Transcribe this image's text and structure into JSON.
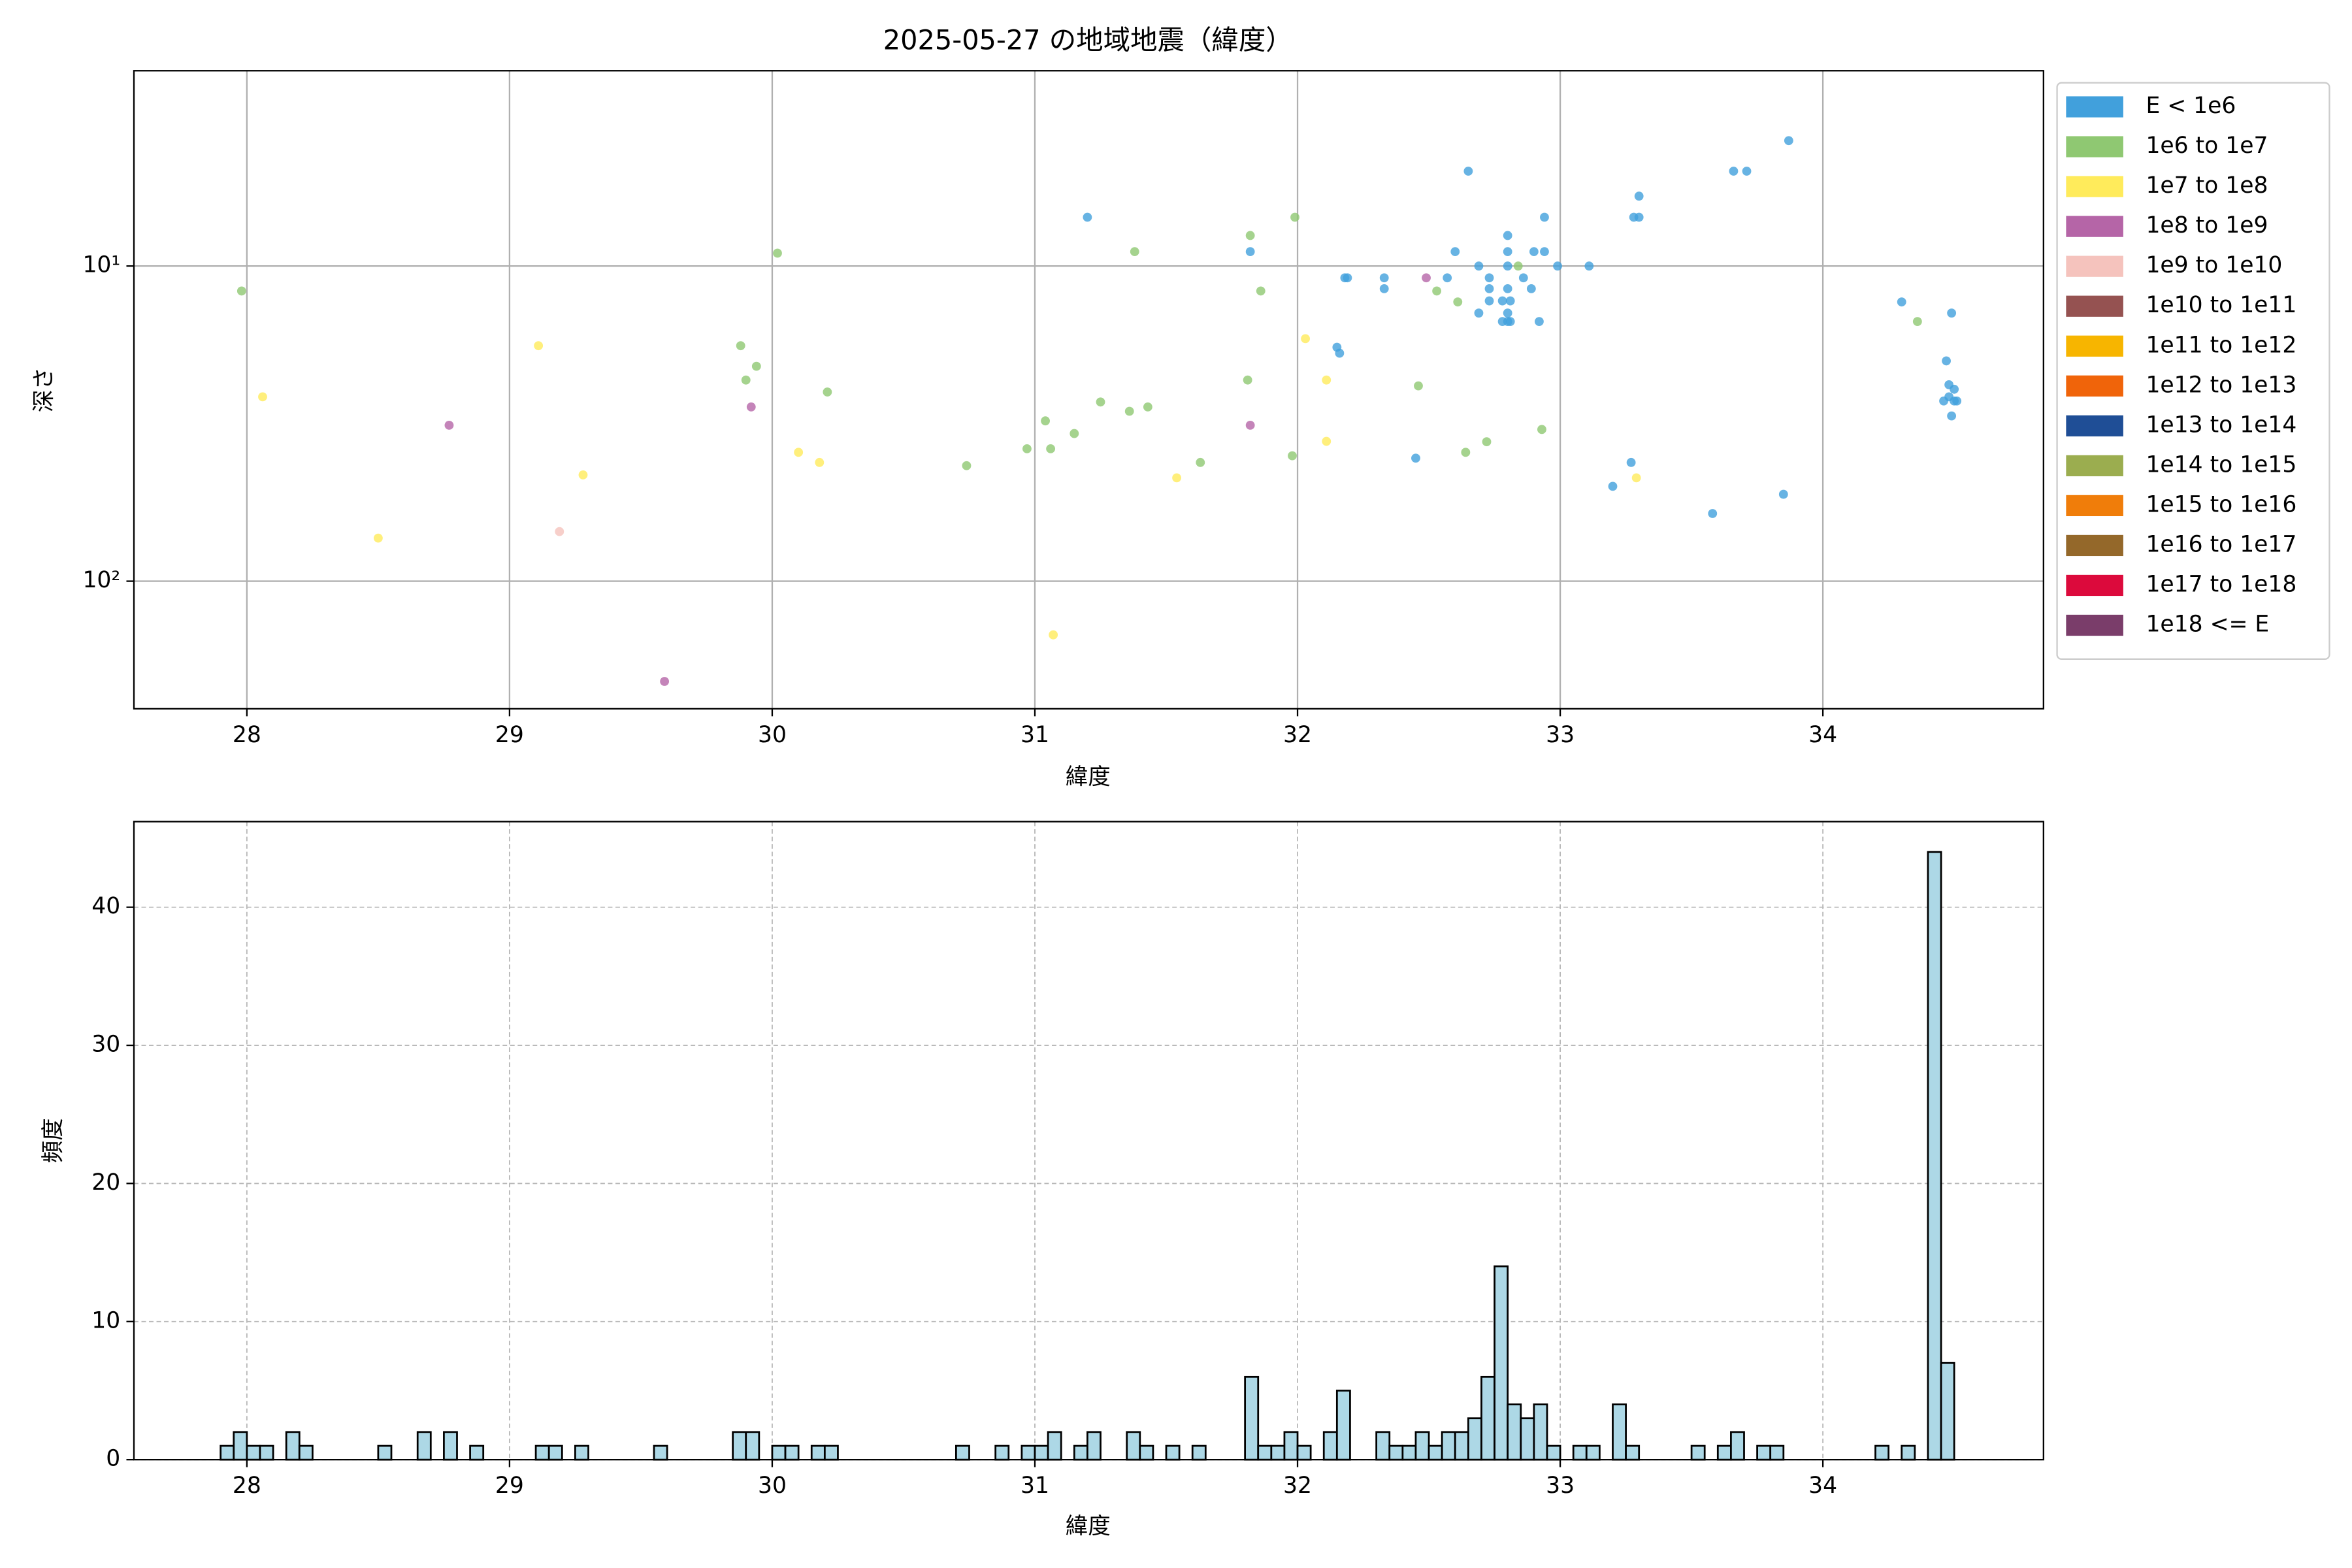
{
  "chart_data": [
    {
      "type": "scatter",
      "title": "2025-05-27 の地域地震（緯度）",
      "xlabel": "緯度",
      "ylabel": "深さ",
      "xlim": [
        27.57,
        34.84
      ],
      "xticks": [
        28,
        29,
        30,
        31,
        32,
        33,
        34
      ],
      "yscale": "log",
      "ylim": [
        254,
        2.4
      ],
      "yticks": [
        {
          "value": 10,
          "label": "10¹"
        },
        {
          "value": 100,
          "label": "10²"
        }
      ],
      "grid": true,
      "legend": "right",
      "series": [
        {
          "name": "E < 1e6",
          "color": "#41a0dc",
          "x": [
            31.2,
            32.65,
            33.87,
            33.66,
            33.71,
            33.3,
            33.28,
            33.3,
            32.94,
            32.8,
            32.6,
            32.94,
            32.9,
            32.8,
            31.82,
            32.69,
            32.99,
            33.11,
            32.8,
            32.18,
            32.19,
            32.33,
            32.33,
            32.57,
            32.73,
            32.73,
            32.86,
            32.8,
            32.89,
            32.73,
            32.78,
            32.81,
            32.69,
            32.8,
            32.8,
            32.78,
            32.81,
            32.92,
            32.15,
            32.16,
            34.3,
            34.49,
            34.47,
            34.48,
            34.5,
            34.48,
            34.5,
            34.46,
            34.51,
            34.49,
            32.45,
            33.27,
            33.2,
            33.85,
            33.58
          ],
          "y": [
            7,
            5,
            4,
            5,
            5,
            6,
            7,
            7,
            7,
            8,
            9,
            9,
            9,
            9,
            9,
            10,
            10,
            10,
            10,
            10.9,
            10.9,
            10.9,
            11.8,
            10.9,
            10.9,
            11.8,
            10.9,
            11.8,
            11.8,
            12.9,
            12.9,
            12.9,
            14.1,
            14.1,
            15,
            15,
            15,
            15,
            18.1,
            18.9,
            13,
            14.1,
            20,
            23.8,
            24.6,
            26,
            26.8,
            26.8,
            26.8,
            29.9,
            40.7,
            42,
            50,
            53,
            61
          ]
        },
        {
          "name": "1e6 to 1e7",
          "color": "#8fc872",
          "x": [
            27.98,
            30.02,
            31.38,
            31.82,
            31.99,
            31.86,
            29.88,
            29.94,
            29.9,
            30.21,
            31.81,
            32.46,
            32.53,
            32.61,
            32.84,
            31.25,
            31.43,
            31.36,
            31.04,
            31.15,
            30.97,
            31.06,
            30.74,
            31.63,
            31.98,
            32.72,
            32.64,
            32.93,
            34.36
          ],
          "y": [
            12,
            9.1,
            9,
            8,
            7,
            12,
            17.9,
            20.8,
            23,
            25.1,
            23,
            24,
            12,
            13,
            10,
            27,
            28,
            28.9,
            31,
            34,
            38,
            38,
            43,
            42,
            40,
            36.1,
            39,
            33,
            15
          ]
        },
        {
          "name": "1e7 to 1e8",
          "color": "#ffeb5b",
          "x": [
            28.06,
            29.11,
            30.1,
            30.18,
            29.28,
            28.5,
            31.54,
            32.03,
            32.11,
            32.11,
            33.29,
            31.07
          ],
          "y": [
            26,
            17.9,
            39,
            42,
            46,
            73,
            47,
            17,
            23,
            36,
            47,
            148
          ]
        },
        {
          "name": "1e8 to 1e9",
          "color": "#b565a7",
          "x": [
            28.77,
            29.92,
            31.82,
            32.49,
            29.59
          ],
          "y": [
            32,
            28,
            32,
            10.9,
            208
          ]
        },
        {
          "name": "1e9 to 1e10",
          "color": "#f5c3bd",
          "x": [
            29.19
          ],
          "y": [
            69.6
          ]
        },
        {
          "name": "1e10 to 1e11",
          "color": "#955251",
          "x": [],
          "y": []
        },
        {
          "name": "1e11 to 1e12",
          "color": "#f7b500",
          "x": [],
          "y": []
        },
        {
          "name": "1e12 to 1e13",
          "color": "#f0640a",
          "x": [],
          "y": []
        },
        {
          "name": "1e13 to 1e14",
          "color": "#1f4e96",
          "x": [],
          "y": []
        },
        {
          "name": "1e14 to 1e15",
          "color": "#9bad4f",
          "x": [],
          "y": []
        },
        {
          "name": "1e15 to 1e16",
          "color": "#f07d0a",
          "x": [],
          "y": []
        },
        {
          "name": "1e16 to 1e17",
          "color": "#94682a",
          "x": [],
          "y": []
        },
        {
          "name": "1e17 to 1e18",
          "color": "#dc0a3c",
          "x": [],
          "y": []
        },
        {
          "name": "1e18 <= E",
          "color": "#7a3d6a",
          "x": [],
          "y": []
        }
      ]
    },
    {
      "type": "histogram",
      "xlabel": "緯度",
      "ylabel": "頻度",
      "xlim": [
        27.57,
        34.84
      ],
      "xticks": [
        28,
        29,
        30,
        31,
        32,
        33,
        34
      ],
      "ylim": [
        0,
        46.2
      ],
      "yticks": [
        0,
        10,
        20,
        30,
        40
      ],
      "grid": true,
      "grid_linestyle": "dashed",
      "color": "#add8e6",
      "edgecolor": "#000000",
      "bins": [
        27.9,
        27.95,
        28,
        28.05,
        28.1,
        28.15,
        28.2,
        28.25,
        28.3,
        28.35,
        28.4,
        28.45,
        28.5,
        28.55,
        28.6,
        28.65,
        28.7,
        28.75,
        28.8,
        28.85,
        28.9,
        28.95,
        29,
        29.05,
        29.1,
        29.15,
        29.2,
        29.25,
        29.3,
        29.35,
        29.4,
        29.45,
        29.5,
        29.55,
        29.6,
        29.65,
        29.7,
        29.75,
        29.8,
        29.85,
        29.9,
        29.95,
        30,
        30.05,
        30.1,
        30.15,
        30.2,
        30.25,
        30.3,
        30.35,
        30.4,
        30.45,
        30.5,
        30.55,
        30.6,
        30.65,
        30.7,
        30.75,
        30.8,
        30.85,
        30.9,
        30.95,
        31,
        31.05,
        31.1,
        31.15,
        31.2,
        31.25,
        31.3,
        31.35,
        31.4,
        31.45,
        31.5,
        31.55,
        31.6,
        31.65,
        31.7,
        31.75,
        31.8,
        31.85,
        31.9,
        31.95,
        32,
        32.05,
        32.1,
        32.15,
        32.2,
        32.25,
        32.3,
        32.35,
        32.4,
        32.45,
        32.5,
        32.55,
        32.6,
        32.65,
        32.7,
        32.75,
        32.8,
        32.85,
        32.9,
        32.95,
        33,
        33.05,
        33.1,
        33.15,
        33.2,
        33.25,
        33.3,
        33.35,
        33.4,
        33.45,
        33.5,
        33.55,
        33.6,
        33.65,
        33.7,
        33.75,
        33.8,
        33.85,
        33.9,
        33.95,
        34,
        34.05,
        34.1,
        34.15,
        34.2,
        34.25,
        34.3,
        34.35,
        34.4,
        34.45,
        34.5
      ],
      "counts": [
        1,
        2,
        1,
        1,
        0,
        2,
        1,
        0,
        0,
        0,
        0,
        0,
        1,
        0,
        0,
        2,
        0,
        2,
        0,
        1,
        0,
        0,
        0,
        0,
        1,
        1,
        0,
        1,
        0,
        0,
        0,
        0,
        0,
        1,
        0,
        0,
        0,
        0,
        0,
        2,
        2,
        0,
        1,
        1,
        0,
        1,
        1,
        0,
        0,
        0,
        0,
        0,
        0,
        0,
        0,
        0,
        1,
        0,
        0,
        1,
        0,
        1,
        1,
        2,
        0,
        1,
        2,
        0,
        0,
        2,
        1,
        0,
        1,
        0,
        1,
        0,
        0,
        0,
        6,
        1,
        1,
        2,
        1,
        0,
        2,
        5,
        0,
        0,
        2,
        1,
        1,
        2,
        1,
        2,
        2,
        3,
        6,
        14,
        4,
        3,
        4,
        1,
        0,
        1,
        1,
        0,
        4,
        1,
        0,
        0,
        0,
        0,
        1,
        0,
        1,
        2,
        0,
        1,
        1,
        0,
        0,
        0,
        0,
        0,
        0,
        0,
        1,
        0,
        1,
        0,
        44,
        7
      ]
    }
  ]
}
